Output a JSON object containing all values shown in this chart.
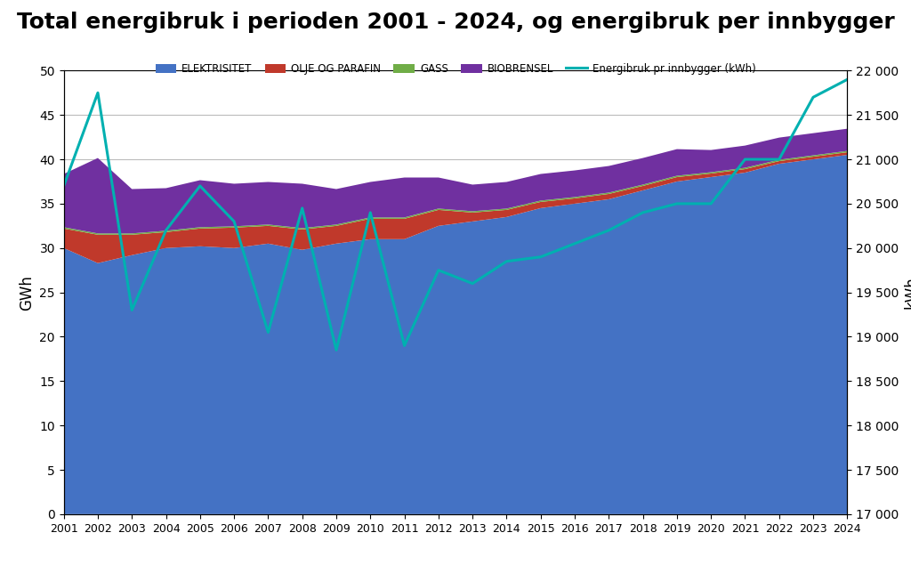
{
  "title": "Total energibruk i perioden 2001 - 2024, og energibruk per innbygger",
  "years": [
    2001,
    2002,
    2003,
    2004,
    2005,
    2006,
    2007,
    2008,
    2009,
    2010,
    2011,
    2012,
    2013,
    2014,
    2015,
    2016,
    2017,
    2018,
    2019,
    2020,
    2021,
    2022,
    2023,
    2024
  ],
  "elektrisitet": [
    30.0,
    28.3,
    29.2,
    30.0,
    30.2,
    30.0,
    30.5,
    29.8,
    30.5,
    31.0,
    31.0,
    32.5,
    33.0,
    33.5,
    34.5,
    35.0,
    35.5,
    36.5,
    37.5,
    38.0,
    38.5,
    39.5,
    40.0,
    40.5
  ],
  "olje_og_parafin": [
    2.2,
    3.2,
    2.3,
    1.8,
    2.0,
    2.3,
    2.0,
    2.3,
    2.0,
    2.3,
    2.3,
    1.8,
    1.0,
    0.8,
    0.7,
    0.6,
    0.6,
    0.5,
    0.5,
    0.4,
    0.4,
    0.3,
    0.3,
    0.3
  ],
  "gass": [
    0.15,
    0.15,
    0.15,
    0.15,
    0.15,
    0.15,
    0.15,
    0.15,
    0.15,
    0.15,
    0.15,
    0.15,
    0.15,
    0.15,
    0.15,
    0.15,
    0.15,
    0.15,
    0.15,
    0.15,
    0.15,
    0.15,
    0.15,
    0.15
  ],
  "biobrensel": [
    6.0,
    8.5,
    5.0,
    4.8,
    5.3,
    4.8,
    4.8,
    5.0,
    4.0,
    4.0,
    4.5,
    3.5,
    3.0,
    3.0,
    3.0,
    3.0,
    3.0,
    3.0,
    3.0,
    2.5,
    2.5,
    2.5,
    2.5,
    2.5
  ],
  "energibruk_pr_innbygger": [
    20700,
    21750,
    19300,
    20200,
    20700,
    20300,
    19050,
    20450,
    18850,
    20400,
    18900,
    19750,
    19600,
    19850,
    19900,
    20050,
    20200,
    20400,
    20500,
    20500,
    21000,
    21000,
    21700,
    21900
  ],
  "colors": {
    "elektrisitet": "#4472C4",
    "olje_og_parafin": "#C0392B",
    "gass": "#70AD47",
    "biobrensel": "#7030A0",
    "energibruk_pr_innbygger": "#00B0B0"
  },
  "ylabel_left": "GWh",
  "ylabel_right": "kWh",
  "ylim_left": [
    0,
    50
  ],
  "ylim_right": [
    17000,
    22000
  ],
  "yticks_left": [
    0,
    5,
    10,
    15,
    20,
    25,
    30,
    35,
    40,
    45,
    50
  ],
  "yticks_right": [
    17000,
    17500,
    18000,
    18500,
    19000,
    19500,
    20000,
    20500,
    21000,
    21500,
    22000
  ],
  "legend_labels": [
    "ELEKTRISITET",
    "OLJE OG PARAFIN",
    "GASS",
    "BIOBRENSEL",
    "Energibruk pr innbygger (kWh)"
  ],
  "background_color": "#FFFFFF",
  "title_fontsize": 18,
  "plot_bgcolor": "#E8E8E8"
}
